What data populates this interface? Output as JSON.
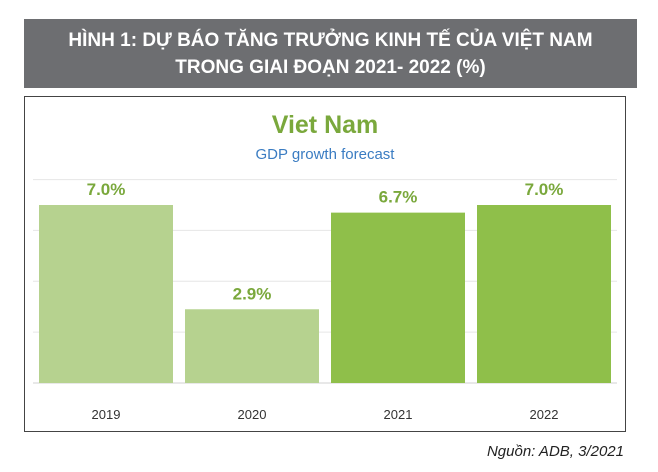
{
  "header": {
    "line1": "HÌNH 1: DỰ BÁO TĂNG TRƯỞNG KINH TẾ CỦA VIỆT NAM",
    "line2": "TRONG GIAI ĐOẠN 2021- 2022 (%)"
  },
  "source": "Nguồn: ADB, 3/2021",
  "colors": {
    "header_bg": "#6d6e71",
    "bar_light": "#b6d28f",
    "bar_dark": "#8fbf4a",
    "label_green": "#7aa83c",
    "subtitle_blue": "#3a7cc2"
  },
  "chart_data": {
    "type": "bar",
    "title": "Viet Nam",
    "subtitle": "GDP growth forecast",
    "categories": [
      "2019",
      "2020",
      "2021",
      "2022"
    ],
    "values": [
      7.0,
      2.9,
      6.7,
      7.0
    ],
    "value_labels": [
      "7.0%",
      "2.9%",
      "6.7%",
      "7.0%"
    ],
    "highlight": [
      false,
      false,
      true,
      true
    ],
    "ylim": [
      0,
      8
    ],
    "grid": true,
    "xlabel": "",
    "ylabel": ""
  }
}
